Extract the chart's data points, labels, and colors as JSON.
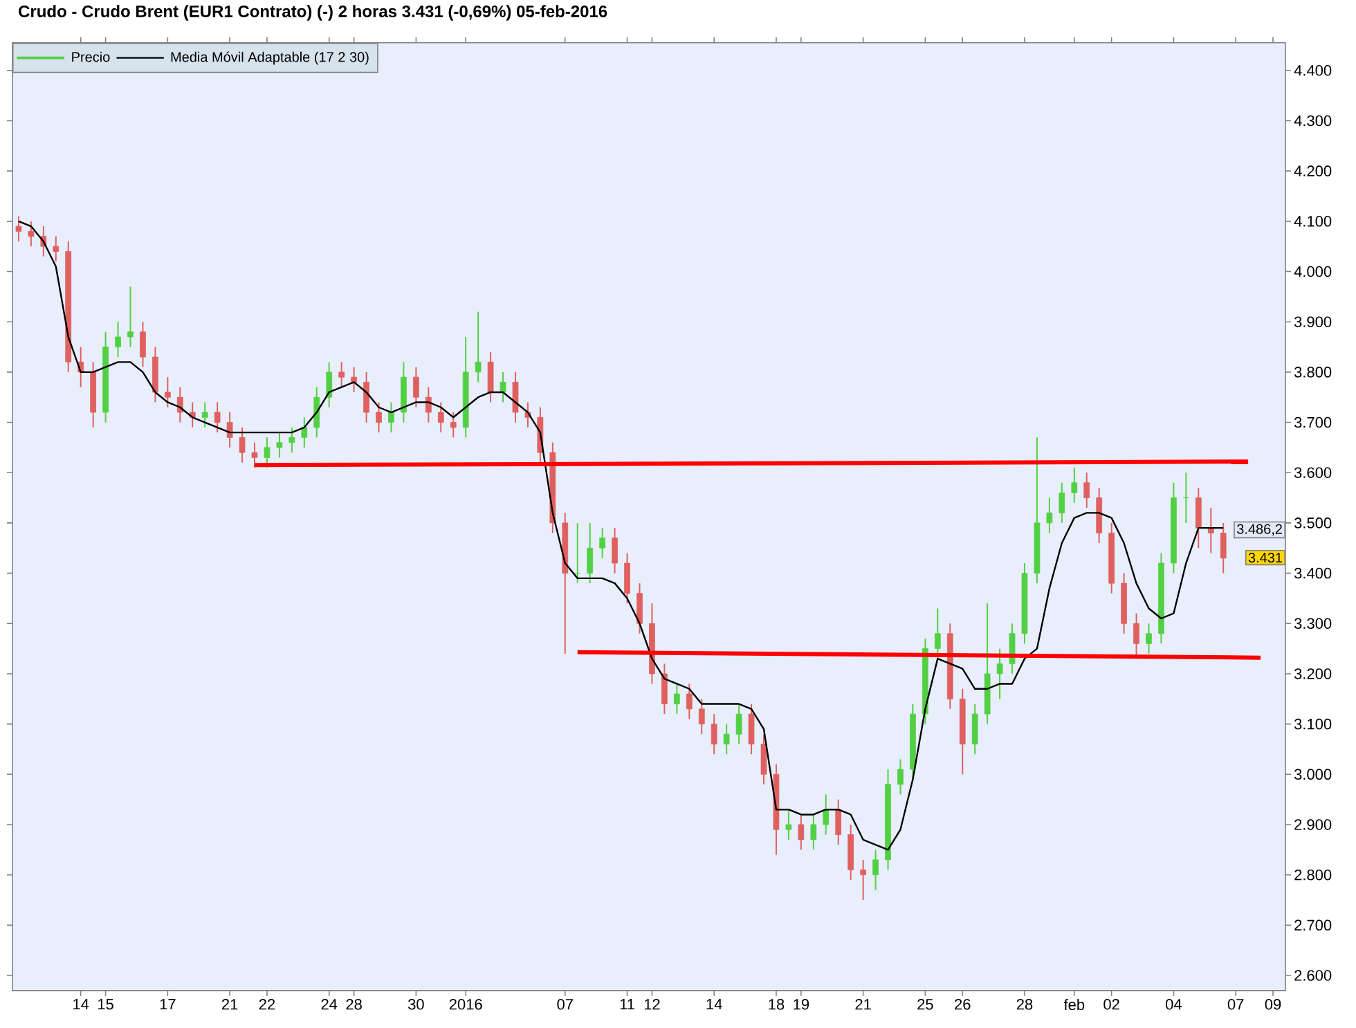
{
  "chart_data": {
    "type": "candlestick",
    "title": "Crudo - Crudo Brent (EUR1 Contrato) (-)  2 horas  3.431 (-0,69%)  05-feb-2016",
    "categories": [
      null,
      null,
      null,
      null,
      null,
      "14",
      null,
      "15",
      null,
      null,
      null,
      null,
      "17",
      null,
      null,
      null,
      null,
      "21",
      null,
      null,
      "22",
      null,
      null,
      null,
      null,
      "24",
      null,
      "28",
      null,
      null,
      null,
      null,
      "30",
      null,
      null,
      null,
      "2016",
      null,
      null,
      null,
      null,
      null,
      null,
      null,
      "07",
      null,
      null,
      null,
      null,
      "11",
      null,
      "12",
      null,
      null,
      null,
      null,
      "14",
      null,
      null,
      null,
      null,
      "18",
      null,
      "19",
      null,
      null,
      null,
      null,
      "21",
      null,
      null,
      null,
      null,
      "25",
      null,
      null,
      "26",
      null,
      null,
      null,
      null,
      "28",
      null,
      null,
      null,
      "feb",
      null,
      null,
      "02",
      null,
      null,
      null,
      null,
      "04",
      null,
      null,
      null,
      null,
      "07",
      null,
      null,
      "09"
    ],
    "series": [
      {
        "name": "Precio",
        "type": "candlestick",
        "ohlc": [
          [
            4090,
            4110,
            4060,
            4080
          ],
          [
            4080,
            4100,
            4050,
            4070
          ],
          [
            4070,
            4090,
            4030,
            4050
          ],
          [
            4050,
            4070,
            4020,
            4040
          ],
          [
            4040,
            4060,
            3800,
            3820
          ],
          [
            3820,
            3850,
            3770,
            3800
          ],
          [
            3800,
            3820,
            3690,
            3720
          ],
          [
            3720,
            3880,
            3700,
            3850
          ],
          [
            3850,
            3900,
            3830,
            3870
          ],
          [
            3870,
            3970,
            3850,
            3880
          ],
          [
            3880,
            3900,
            3810,
            3830
          ],
          [
            3830,
            3850,
            3740,
            3760
          ],
          [
            3760,
            3790,
            3730,
            3750
          ],
          [
            3750,
            3770,
            3700,
            3720
          ],
          [
            3720,
            3740,
            3690,
            3710
          ],
          [
            3710,
            3740,
            3690,
            3720
          ],
          [
            3720,
            3740,
            3680,
            3700
          ],
          [
            3700,
            3720,
            3650,
            3670
          ],
          [
            3670,
            3690,
            3620,
            3640
          ],
          [
            3640,
            3660,
            3610,
            3630
          ],
          [
            3630,
            3670,
            3610,
            3650
          ],
          [
            3650,
            3680,
            3630,
            3660
          ],
          [
            3660,
            3690,
            3640,
            3670
          ],
          [
            3670,
            3710,
            3650,
            3690
          ],
          [
            3690,
            3770,
            3670,
            3750
          ],
          [
            3750,
            3820,
            3730,
            3800
          ],
          [
            3800,
            3820,
            3770,
            3790
          ],
          [
            3790,
            3810,
            3760,
            3780
          ],
          [
            3780,
            3800,
            3700,
            3720
          ],
          [
            3720,
            3740,
            3680,
            3700
          ],
          [
            3700,
            3740,
            3680,
            3720
          ],
          [
            3720,
            3820,
            3700,
            3790
          ],
          [
            3790,
            3810,
            3730,
            3750
          ],
          [
            3750,
            3770,
            3700,
            3720
          ],
          [
            3720,
            3740,
            3680,
            3700
          ],
          [
            3700,
            3720,
            3670,
            3690
          ],
          [
            3690,
            3870,
            3670,
            3800
          ],
          [
            3800,
            3920,
            3780,
            3820
          ],
          [
            3820,
            3840,
            3740,
            3760
          ],
          [
            3760,
            3800,
            3740,
            3780
          ],
          [
            3780,
            3800,
            3700,
            3720
          ],
          [
            3720,
            3740,
            3690,
            3710
          ],
          [
            3710,
            3730,
            3620,
            3640
          ],
          [
            3640,
            3660,
            3480,
            3500
          ],
          [
            3500,
            3520,
            3240,
            3400
          ],
          [
            3400,
            3500,
            3380,
            3400
          ],
          [
            3400,
            3500,
            3380,
            3450
          ],
          [
            3450,
            3490,
            3430,
            3470
          ],
          [
            3470,
            3490,
            3400,
            3420
          ],
          [
            3420,
            3440,
            3340,
            3360
          ],
          [
            3360,
            3380,
            3280,
            3300
          ],
          [
            3300,
            3340,
            3180,
            3200
          ],
          [
            3200,
            3220,
            3120,
            3140
          ],
          [
            3140,
            3180,
            3120,
            3160
          ],
          [
            3160,
            3180,
            3110,
            3130
          ],
          [
            3130,
            3150,
            3080,
            3100
          ],
          [
            3100,
            3120,
            3040,
            3060
          ],
          [
            3060,
            3100,
            3040,
            3080
          ],
          [
            3080,
            3140,
            3060,
            3120
          ],
          [
            3120,
            3140,
            3040,
            3060
          ],
          [
            3060,
            3080,
            2980,
            3000
          ],
          [
            3000,
            3020,
            2840,
            2890
          ],
          [
            2890,
            2930,
            2870,
            2900
          ],
          [
            2900,
            2920,
            2850,
            2870
          ],
          [
            2870,
            2920,
            2850,
            2900
          ],
          [
            2900,
            2960,
            2880,
            2930
          ],
          [
            2930,
            2950,
            2860,
            2880
          ],
          [
            2880,
            2900,
            2790,
            2810
          ],
          [
            2810,
            2830,
            2750,
            2800
          ],
          [
            2800,
            2850,
            2770,
            2830
          ],
          [
            2830,
            3010,
            2810,
            2980
          ],
          [
            2980,
            3030,
            2960,
            3010
          ],
          [
            3010,
            3140,
            2990,
            3120
          ],
          [
            3120,
            3270,
            3100,
            3250
          ],
          [
            3250,
            3330,
            3230,
            3280
          ],
          [
            3280,
            3300,
            3130,
            3150
          ],
          [
            3150,
            3170,
            3000,
            3060
          ],
          [
            3060,
            3140,
            3040,
            3120
          ],
          [
            3120,
            3340,
            3100,
            3200
          ],
          [
            3200,
            3250,
            3150,
            3220
          ],
          [
            3220,
            3300,
            3200,
            3280
          ],
          [
            3280,
            3420,
            3260,
            3400
          ],
          [
            3400,
            3670,
            3380,
            3500
          ],
          [
            3500,
            3550,
            3480,
            3520
          ],
          [
            3520,
            3580,
            3500,
            3560
          ],
          [
            3560,
            3610,
            3540,
            3580
          ],
          [
            3580,
            3600,
            3530,
            3550
          ],
          [
            3550,
            3570,
            3460,
            3480
          ],
          [
            3480,
            3500,
            3360,
            3380
          ],
          [
            3380,
            3400,
            3280,
            3300
          ],
          [
            3300,
            3320,
            3230,
            3260
          ],
          [
            3260,
            3300,
            3240,
            3280
          ],
          [
            3280,
            3440,
            3260,
            3420
          ],
          [
            3420,
            3580,
            3400,
            3550
          ],
          [
            3550,
            3600,
            3500,
            3550
          ],
          [
            3550,
            3570,
            3450,
            3490
          ],
          [
            3490,
            3530,
            3440,
            3480
          ],
          [
            3480,
            3500,
            3400,
            3430
          ],
          null,
          null,
          null,
          null
        ]
      },
      {
        "name": "Media Móvil Adaptable (17 2 30)",
        "type": "line",
        "color": "#000000",
        "values": [
          4100,
          4090,
          4060,
          4010,
          3870,
          3800,
          3800,
          3810,
          3820,
          3820,
          3800,
          3760,
          3740,
          3730,
          3710,
          3700,
          3690,
          3680,
          3680,
          3680,
          3680,
          3680,
          3680,
          3690,
          3720,
          3760,
          3770,
          3780,
          3760,
          3730,
          3720,
          3730,
          3740,
          3740,
          3730,
          3710,
          3730,
          3750,
          3760,
          3760,
          3740,
          3720,
          3680,
          3520,
          3420,
          3390,
          3390,
          3390,
          3380,
          3350,
          3300,
          3230,
          3190,
          3180,
          3170,
          3140,
          3140,
          3140,
          3140,
          3130,
          3090,
          2930,
          2930,
          2920,
          2920,
          2930,
          2930,
          2920,
          2870,
          2860,
          2850,
          2890,
          2990,
          3130,
          3230,
          3220,
          3210,
          3170,
          3170,
          3180,
          3180,
          3230,
          3250,
          3370,
          3460,
          3510,
          3520,
          3520,
          3510,
          3460,
          3380,
          3330,
          3310,
          3320,
          3420,
          3490,
          3490,
          3490,
          null,
          null,
          null,
          null
        ]
      },
      {
        "type": "line",
        "color": "#ff0000",
        "values": [
          null,
          null,
          null,
          null,
          null,
          null,
          null,
          null,
          null,
          null,
          null,
          null,
          null,
          null,
          null,
          null,
          null,
          null,
          null,
          3615,
          null,
          null,
          null,
          null,
          null,
          null,
          null,
          null,
          null,
          null,
          null,
          null,
          null,
          null,
          null,
          null,
          null,
          null,
          null,
          null,
          null,
          null,
          null,
          null,
          null,
          null,
          null,
          null,
          null,
          null,
          null,
          null,
          null,
          null,
          null,
          null,
          null,
          null,
          null,
          null,
          null,
          null,
          null,
          null,
          null,
          null,
          null,
          null,
          null,
          null,
          null,
          null,
          null,
          null,
          null,
          null,
          null,
          null,
          null,
          null,
          null,
          null,
          null,
          null,
          null,
          null,
          null,
          null,
          null,
          null,
          null,
          null,
          null,
          null,
          null,
          null,
          null,
          null,
          null,
          3622,
          null,
          null
        ]
      },
      {
        "type": "line",
        "color": "#ff0000",
        "values": [
          null,
          null,
          null,
          null,
          null,
          null,
          null,
          null,
          null,
          null,
          null,
          null,
          null,
          null,
          null,
          null,
          null,
          null,
          null,
          null,
          null,
          null,
          null,
          null,
          null,
          null,
          null,
          null,
          null,
          null,
          null,
          null,
          null,
          null,
          null,
          null,
          null,
          null,
          null,
          null,
          null,
          null,
          null,
          null,
          null,
          3243,
          null,
          null,
          null,
          null,
          null,
          null,
          null,
          null,
          null,
          null,
          null,
          null,
          null,
          null,
          null,
          null,
          null,
          null,
          null,
          null,
          null,
          null,
          null,
          null,
          null,
          null,
          null,
          null,
          null,
          null,
          null,
          null,
          null,
          null,
          null,
          null,
          null,
          null,
          null,
          null,
          null,
          null,
          null,
          null,
          null,
          null,
          null,
          null,
          null,
          null,
          null,
          null,
          null,
          null,
          3232,
          null
        ]
      }
    ],
    "ylim": [
      2570,
      4455
    ],
    "yticks": [
      {
        "value": 2600,
        "label": "2.600"
      },
      {
        "value": 2700,
        "label": "2.700"
      },
      {
        "value": 2800,
        "label": "2.800"
      },
      {
        "value": 2900,
        "label": "2.900"
      },
      {
        "value": 3000,
        "label": "3.000"
      },
      {
        "value": 3100,
        "label": "3.100"
      },
      {
        "value": 3200,
        "label": "3.200"
      },
      {
        "value": 3300,
        "label": "3.300"
      },
      {
        "value": 3400,
        "label": "3.400"
      },
      {
        "value": 3500,
        "label": "3.500"
      },
      {
        "value": 3600,
        "label": "3.600"
      },
      {
        "value": 3700,
        "label": "3.700"
      },
      {
        "value": 3800,
        "label": "3.800"
      },
      {
        "value": 3900,
        "label": "3.900"
      },
      {
        "value": 4000,
        "label": "4.000"
      },
      {
        "value": 4100,
        "label": "4.100"
      },
      {
        "value": 4200,
        "label": "4.200"
      },
      {
        "value": 4300,
        "label": "4.300"
      },
      {
        "value": 4400,
        "label": "4.400"
      }
    ],
    "annotations": [
      {
        "text": "3.486,2",
        "y": 3486.2
      },
      {
        "text": "3.431",
        "y": 3431
      }
    ],
    "legend": "top left"
  }
}
